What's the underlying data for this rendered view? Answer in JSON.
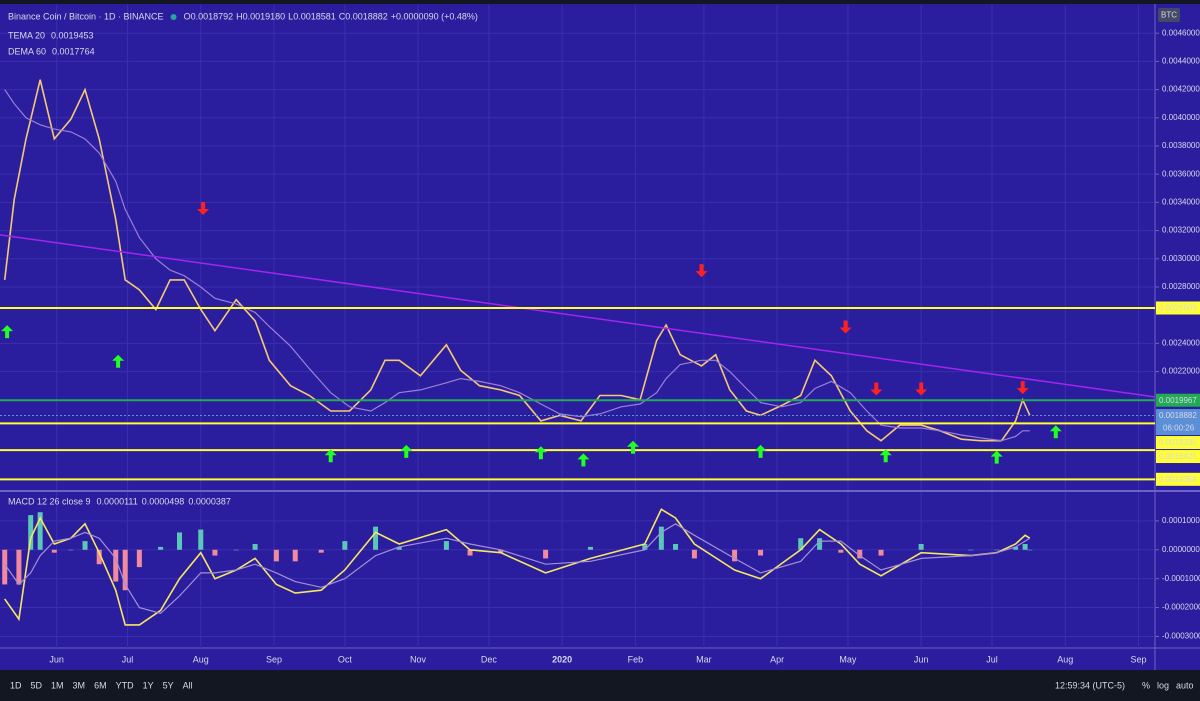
{
  "header": {
    "symbol": "Binance Coin / Bitcoin · 1D · BINANCE",
    "ohlc": [
      [
        "O",
        "0.0018792"
      ],
      [
        "H",
        "0.0019180"
      ],
      [
        "L",
        "0.0018581"
      ],
      [
        "C",
        "0.0018882"
      ]
    ],
    "change": "+0.0000090 (+0.48%)",
    "indicators": [
      [
        "TEMA 20",
        "0.0019453"
      ],
      [
        "DEMA 60",
        "0.0017764"
      ]
    ],
    "currency": "BTC"
  },
  "toolbar": {
    "ranges": [
      "1D",
      "5D",
      "1M",
      "3M",
      "6M",
      "YTD",
      "1Y",
      "5Y",
      "All"
    ],
    "time": "12:59:34 (UTC-5)",
    "options": [
      "%",
      "log",
      "auto"
    ]
  },
  "chart_data": [
    {
      "type": "line",
      "x": [
        2,
        6,
        11,
        17,
        23,
        30,
        36,
        42,
        49,
        53,
        59,
        66,
        72,
        78,
        85,
        91,
        100,
        108,
        114,
        123,
        131,
        140,
        148,
        157,
        163,
        169,
        178,
        189,
        195,
        203,
        212,
        220,
        229,
        237,
        246,
        254,
        263,
        271,
        278,
        282,
        288,
        297,
        303,
        309,
        316,
        322,
        331,
        339,
        345,
        352,
        360,
        367,
        373,
        381,
        390,
        398,
        407,
        415,
        424,
        430,
        433,
        436
      ],
      "series": [
        {
          "name": "TEMA 20",
          "color": "#f7c873",
          "values": [
            0.00285,
            0.00342,
            0.00385,
            0.00427,
            0.00385,
            0.00399,
            0.0042,
            0.00385,
            0.00328,
            0.00285,
            0.00278,
            0.00264,
            0.00285,
            0.00285,
            0.00264,
            0.00249,
            0.00271,
            0.00256,
            0.00228,
            0.0021,
            0.00203,
            0.00192,
            0.00192,
            0.00207,
            0.00228,
            0.00228,
            0.00217,
            0.00239,
            0.00221,
            0.0021,
            0.00207,
            0.00203,
            0.00185,
            0.00189,
            0.00185,
            0.00203,
            0.00203,
            0.002,
            0.00242,
            0.00253,
            0.00232,
            0.00224,
            0.00232,
            0.00207,
            0.00192,
            0.00189,
            0.00196,
            0.00203,
            0.00228,
            0.00217,
            0.00192,
            0.00178,
            0.00171,
            0.00182,
            0.00182,
            0.00178,
            0.00172,
            0.00171,
            0.00171,
            0.00185,
            0.002,
            0.00189
          ]
        },
        {
          "name": "DEMA 60",
          "color": "#9c7fd6",
          "values": [
            0.0042,
            0.0041,
            0.004,
            0.00395,
            0.00392,
            0.0039,
            0.00385,
            0.00375,
            0.00355,
            0.00335,
            0.00315,
            0.003,
            0.00292,
            0.00288,
            0.0028,
            0.00272,
            0.00268,
            0.00262,
            0.00252,
            0.00238,
            0.00222,
            0.00205,
            0.00195,
            0.00192,
            0.00198,
            0.00205,
            0.00207,
            0.00212,
            0.00215,
            0.00213,
            0.0021,
            0.00205,
            0.00197,
            0.0019,
            0.00188,
            0.0019,
            0.00195,
            0.00197,
            0.00205,
            0.00215,
            0.00225,
            0.00228,
            0.00228,
            0.0022,
            0.00208,
            0.00198,
            0.00195,
            0.00198,
            0.00208,
            0.00213,
            0.00205,
            0.00192,
            0.00182,
            0.0018,
            0.0018,
            0.00178,
            0.00175,
            0.00173,
            0.00171,
            0.00174,
            0.00178,
            0.00178
          ]
        }
      ],
      "xlim": [
        0,
        489
      ],
      "xticks": [
        {
          "value": 24,
          "label": "Jun"
        },
        {
          "value": 54,
          "label": "Jul"
        },
        {
          "value": 85,
          "label": "Aug"
        },
        {
          "value": 116,
          "label": "Sep"
        },
        {
          "value": 146,
          "label": "Oct"
        },
        {
          "value": 177,
          "label": "Nov"
        },
        {
          "value": 207,
          "label": "Dec"
        },
        {
          "value": 238,
          "label": "2020"
        },
        {
          "value": 269,
          "label": "Feb"
        },
        {
          "value": 298,
          "label": "Mar"
        },
        {
          "value": 329,
          "label": "Apr"
        },
        {
          "value": 359,
          "label": "May"
        },
        {
          "value": 390,
          "label": "Jun"
        },
        {
          "value": 420,
          "label": "Jul"
        },
        {
          "value": 451,
          "label": "Aug"
        },
        {
          "value": 482,
          "label": "Sep"
        }
      ],
      "ylim": [
        0.00136,
        0.0048
      ],
      "yticks": [
        {
          "value": 0.0046,
          "label": "0.0046000"
        },
        {
          "value": 0.0044,
          "label": "0.0044000"
        },
        {
          "value": 0.0042,
          "label": "0.0042000"
        },
        {
          "value": 0.004,
          "label": "0.0040000"
        },
        {
          "value": 0.0038,
          "label": "0.0038000"
        },
        {
          "value": 0.0036,
          "label": "0.0036000"
        },
        {
          "value": 0.0034,
          "label": "0.0034000"
        },
        {
          "value": 0.0032,
          "label": "0.0032000"
        },
        {
          "value": 0.003,
          "label": "0.0030000"
        },
        {
          "value": 0.0028,
          "label": "0.0028000"
        },
        {
          "value": 0.0024,
          "label": "0.0024000"
        },
        {
          "value": 0.0022,
          "label": "0.0022000"
        }
      ],
      "grid": true,
      "trendline": {
        "x": [
          0,
          489
        ],
        "y": [
          0.00317,
          0.00202
        ],
        "color": "#a424f0"
      },
      "levels": [
        {
          "value": 0.0026509,
          "label": "0.0026509",
          "color": "#ffff33"
        },
        {
          "value": 0.0019967,
          "label": "0.0019967",
          "color": "#22aa55"
        },
        {
          "value": 0.0018882,
          "label": "0.0018882",
          "color": "#5b8fd6",
          "countdown": "06:00:26"
        },
        {
          "value": 0.001833,
          "label": "0.0018330",
          "color": "#ffff33"
        },
        {
          "value": 0.0016425,
          "label": "0.0016425",
          "color": "#ffff33"
        },
        {
          "value": 0.0014358,
          "label": "0.0014358",
          "color": "#ffff33"
        }
      ],
      "signals_up": {
        "color": "#22ff22",
        "x": [
          3,
          50,
          140,
          172,
          229,
          247,
          268,
          322,
          375,
          422,
          447
        ],
        "y": [
          0.00248,
          0.00227,
          0.0016,
          0.00163,
          0.00162,
          0.00157,
          0.00166,
          0.00163,
          0.0016,
          0.00159,
          0.00177
        ]
      },
      "signals_down": {
        "color": "#ff2020",
        "x": [
          86,
          297,
          358,
          371,
          390,
          433
        ],
        "y": [
          0.00336,
          0.00292,
          0.00252,
          0.00208,
          0.00208,
          0.00209
        ]
      }
    },
    {
      "type": "line",
      "title": "MACD 12 26 close 9",
      "legend_values": [
        "0.0000111",
        "0.0000498",
        "0.0000387"
      ],
      "x": [
        2,
        8,
        13,
        17,
        23,
        30,
        36,
        42,
        49,
        53,
        59,
        68,
        76,
        85,
        91,
        100,
        108,
        117,
        125,
        136,
        146,
        159,
        169,
        189,
        199,
        212,
        231,
        250,
        273,
        280,
        286,
        294,
        311,
        322,
        339,
        347,
        356,
        364,
        373,
        390,
        411,
        422,
        430,
        434,
        436
      ],
      "series": [
        {
          "color": "#f5e663",
          "values": [
            -0.00017,
            -0.00024,
            4e-05,
            0.00011,
            2e-05,
            4e-05,
            9e-05,
            -1e-05,
            -0.00014,
            -0.00026,
            -0.00026,
            -0.00021,
            -0.0001,
            -1e-05,
            -0.0001,
            -7e-05,
            -3e-05,
            -0.00012,
            -0.00015,
            -0.00014,
            -7e-05,
            6e-05,
            2e-05,
            7e-05,
            0,
            -1e-05,
            -8e-05,
            -3e-05,
            2e-05,
            0.00014,
            0.00011,
            2e-05,
            -7e-05,
            -0.0001,
            0,
            7e-05,
            2e-05,
            -5e-05,
            -9e-05,
            -1e-05,
            -2e-05,
            -1e-05,
            2e-05,
            5e-05,
            4e-05
          ]
        },
        {
          "color": "#a58fd8",
          "values": [
            -5e-05,
            -0.00012,
            -8e-05,
            -2e-05,
            3e-05,
            4e-05,
            6e-05,
            4e-05,
            -3e-05,
            -0.00012,
            -0.0002,
            -0.00022,
            -0.00016,
            -8e-05,
            -8e-05,
            -7e-05,
            -5e-05,
            -8e-05,
            -0.00011,
            -0.00013,
            -0.0001,
            -2e-05,
            1e-05,
            4e-05,
            2e-05,
            0,
            -5e-05,
            -4e-05,
            0,
            6e-05,
            9e-05,
            5e-05,
            -3e-05,
            -8e-05,
            -4e-05,
            3e-05,
            3e-05,
            -2e-05,
            -7e-05,
            -3e-05,
            -2e-05,
            -1e-05,
            1e-05,
            3e-05,
            4e-05
          ]
        }
      ],
      "histogram": {
        "up_color": "#5cc6b8",
        "down_color": "#f08a9c",
        "values": [
          -0.00012,
          -0.00012,
          0.00012,
          0.00013,
          -1e-05,
          0,
          3e-05,
          -5e-05,
          -0.00011,
          -0.00014,
          -6e-05,
          1e-05,
          6e-05,
          7e-05,
          -2e-05,
          0,
          2e-05,
          -4e-05,
          -4e-05,
          -1e-05,
          3e-05,
          8e-05,
          1e-05,
          3e-05,
          -2e-05,
          -1e-05,
          -3e-05,
          1e-05,
          2e-05,
          8e-05,
          2e-05,
          -3e-05,
          -4e-05,
          -2e-05,
          4e-05,
          4e-05,
          -1e-05,
          -3e-05,
          -2e-05,
          2e-05,
          0,
          0,
          1e-05,
          2e-05,
          0
        ]
      },
      "xlim": [
        0,
        489
      ],
      "ylim": [
        -0.00034,
        0.0002
      ],
      "yticks": [
        {
          "value": 0.0001,
          "label": "0.0001000"
        },
        {
          "value": 0,
          "label": "0.0000000"
        },
        {
          "value": -0.0001,
          "label": "-0.0001000"
        },
        {
          "value": -0.0002,
          "label": "-0.0002000"
        },
        {
          "value": -0.0003,
          "label": "-0.0003000"
        }
      ],
      "grid": true
    }
  ]
}
